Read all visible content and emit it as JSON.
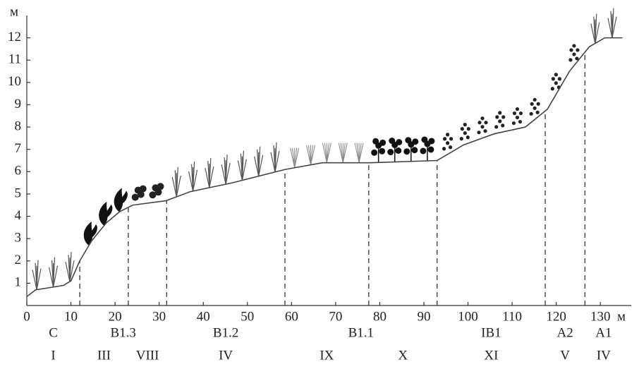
{
  "chart_data": {
    "type": "line",
    "x": [
      0,
      2,
      8.3,
      10,
      12,
      14.7,
      18,
      21,
      24,
      31.6,
      37,
      46.6,
      58.6,
      67,
      77.8,
      93,
      99,
      106,
      113,
      118,
      123,
      127.5,
      131,
      135
    ],
    "y": [
      0.4,
      0.7,
      0.9,
      1.1,
      2.0,
      2.9,
      3.7,
      4.2,
      4.5,
      4.7,
      5.1,
      5.5,
      6.1,
      6.4,
      6.4,
      6.5,
      7.2,
      7.7,
      8.0,
      8.8,
      10.5,
      11.6,
      12.0,
      12.0
    ],
    "color": "#444",
    "xlim": [
      0,
      137
    ],
    "ylim": [
      0,
      13
    ],
    "xticks": [
      0,
      10,
      20,
      30,
      40,
      50,
      60,
      70,
      80,
      90,
      100,
      110,
      120,
      130
    ],
    "yticks": [
      1,
      2,
      3,
      4,
      5,
      6,
      7,
      8,
      9,
      10,
      11,
      12
    ],
    "x_label": "м",
    "y_label": "м",
    "boundaries": [
      12,
      23,
      31.7,
      58.5,
      77.5,
      93,
      117.5,
      126.5
    ],
    "groups": [
      {
        "label": "C",
        "zones": [
          "I"
        ]
      },
      {
        "label": "B1.3",
        "zones": [
          "III",
          "VIII"
        ]
      },
      {
        "label": "B1.2",
        "zones": [
          "IV"
        ]
      },
      {
        "label": "B1.1",
        "zones": [
          "IX",
          "X"
        ]
      },
      {
        "label": "IB1",
        "zones": [
          "XI"
        ]
      },
      {
        "label": "A2",
        "zones": [
          "V"
        ]
      },
      {
        "label": "A1",
        "zones": [
          "IV"
        ]
      }
    ]
  }
}
